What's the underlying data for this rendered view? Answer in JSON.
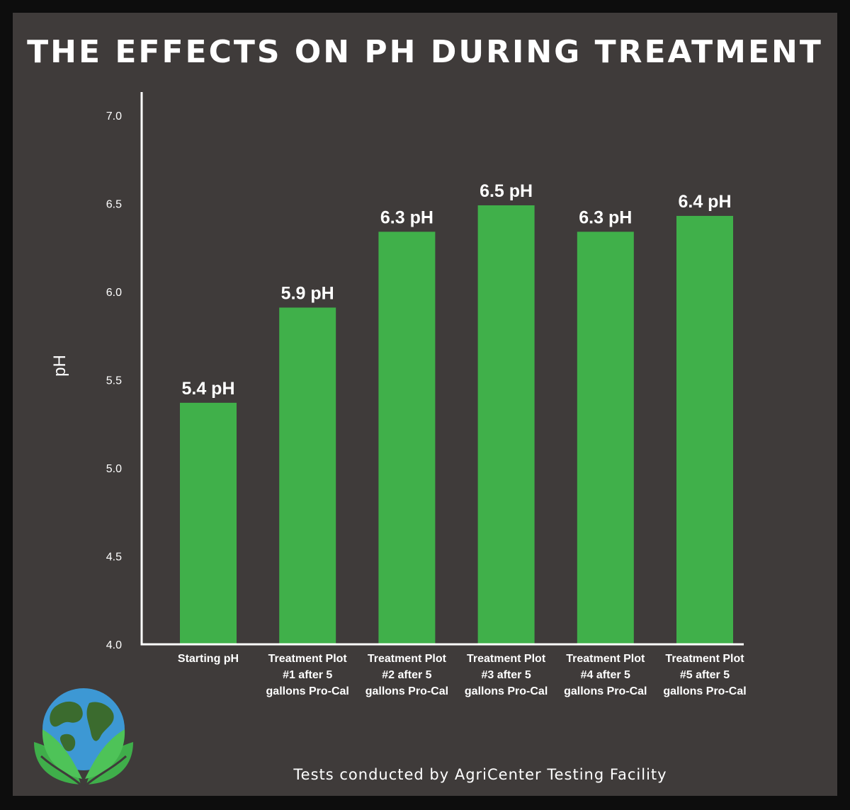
{
  "colors": {
    "background": "#3f3b3a",
    "bar": "#40b04a",
    "text": "#ffffff",
    "axis": "#ffffff"
  },
  "title": "THE EFFECTS ON PH DURING TREATMENT",
  "footer": "Tests conducted by AgriCenter Testing Facility",
  "logo": {
    "icon": "globe-leaves-logo"
  },
  "chart_data": {
    "type": "bar",
    "title": "THE EFFECTS ON PH DURING TREATMENT",
    "xlabel": "",
    "ylabel": "pH",
    "ylim": [
      4.0,
      7.0
    ],
    "yticks": [
      "4.0",
      "4.5",
      "5.0",
      "5.5",
      "6.0",
      "6.5",
      "7.0"
    ],
    "grid": false,
    "categories": [
      [
        "Starting pH"
      ],
      [
        "Treatment Plot",
        "#1 after 5",
        "gallons Pro-Cal"
      ],
      [
        "Treatment Plot",
        "#2 after 5",
        "gallons Pro-Cal"
      ],
      [
        "Treatment Plot",
        "#3 after 5",
        "gallons Pro-Cal"
      ],
      [
        "Treatment Plot",
        "#4 after 5",
        "gallons Pro-Cal"
      ],
      [
        "Treatment Plot",
        "#5 after 5",
        "gallons Pro-Cal"
      ]
    ],
    "values": [
      5.37,
      5.91,
      6.34,
      6.49,
      6.34,
      6.43
    ],
    "data_labels": [
      "5.4 pH",
      "5.9 pH",
      "6.3 pH",
      "6.5 pH",
      "6.3 pH",
      "6.4 pH"
    ]
  }
}
